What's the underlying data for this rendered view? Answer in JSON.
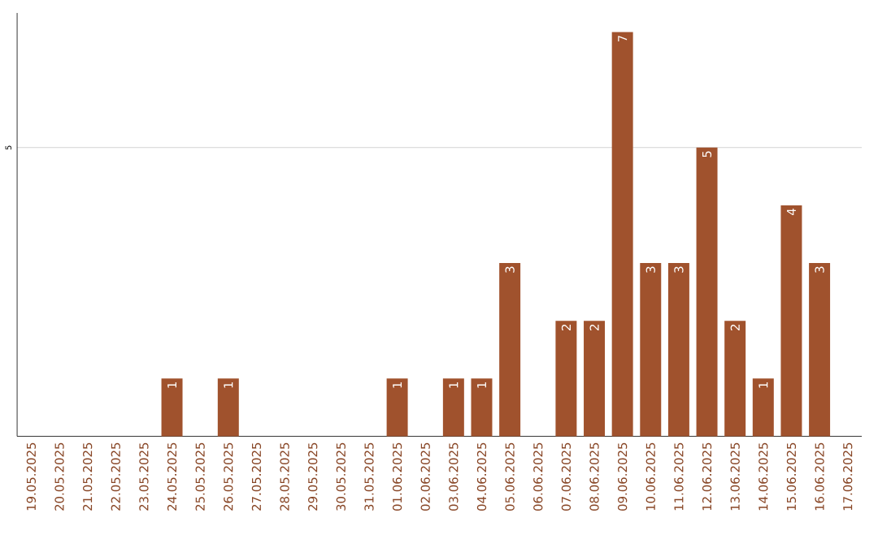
{
  "chart_data": {
    "type": "bar",
    "categories": [
      "19.05.2025",
      "20.05.2025",
      "21.05.2025",
      "22.05.2025",
      "23.05.2025",
      "24.05.2025",
      "25.05.2025",
      "26.05.2025",
      "27.05.2025",
      "28.05.2025",
      "29.05.2025",
      "30.05.2025",
      "31.05.2025",
      "01.06.2025",
      "02.06.2025",
      "03.06.2025",
      "04.06.2025",
      "05.06.2025",
      "06.06.2025",
      "07.06.2025",
      "08.06.2025",
      "09.06.2025",
      "10.06.2025",
      "11.06.2025",
      "12.06.2025",
      "13.06.2025",
      "14.06.2025",
      "15.06.2025",
      "16.06.2025",
      "17.06.2025"
    ],
    "values": [
      0,
      0,
      0,
      0,
      0,
      1,
      0,
      1,
      0,
      0,
      0,
      0,
      0,
      1,
      0,
      1,
      1,
      3,
      0,
      2,
      2,
      7,
      3,
      3,
      5,
      2,
      1,
      4,
      3,
      0
    ],
    "value_labels": [
      null,
      null,
      null,
      null,
      null,
      "1",
      null,
      "1",
      null,
      null,
      null,
      null,
      null,
      "1",
      null,
      "1",
      "1",
      "3",
      null,
      "2",
      "2",
      "7",
      "3",
      "3",
      "5",
      "2",
      "1",
      "4",
      "3",
      null
    ],
    "color": "#a0522d",
    "ylim": [
      0,
      7.33
    ],
    "yticks": [
      5
    ],
    "grid": "y"
  }
}
